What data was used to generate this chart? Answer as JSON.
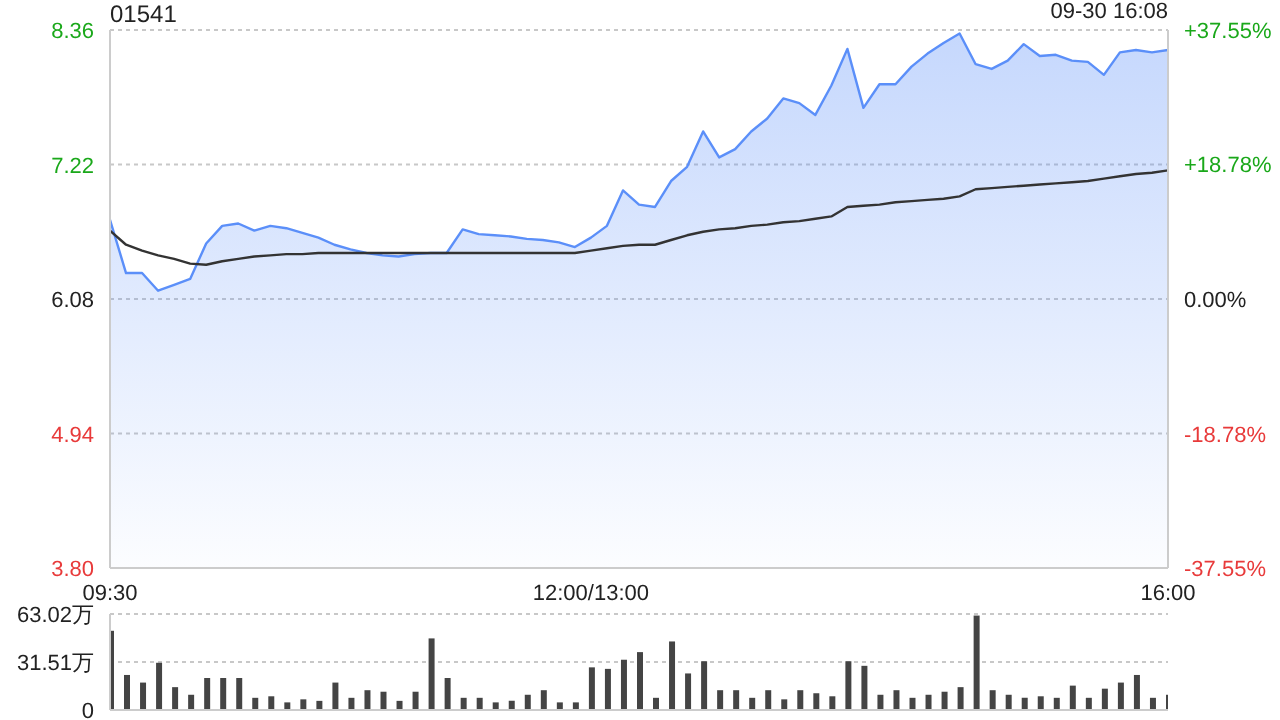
{
  "chart_data": [
    {
      "type": "line",
      "title": "01541",
      "annotations": [
        "09-30 16:08"
      ],
      "categories": [
        "09:30",
        null,
        null,
        null,
        null,
        null,
        null,
        null,
        null,
        null,
        null,
        null,
        null,
        null,
        null,
        null,
        null,
        null,
        null,
        null,
        null,
        null,
        null,
        null,
        null,
        null,
        null,
        null,
        null,
        null,
        "12:00/13:00",
        null,
        null,
        null,
        null,
        null,
        null,
        null,
        null,
        null,
        null,
        null,
        null,
        null,
        null,
        null,
        null,
        null,
        null,
        null,
        null,
        null,
        null,
        null,
        null,
        null,
        null,
        null,
        null,
        null,
        null,
        null,
        null,
        null,
        null,
        null,
        "16:00"
      ],
      "ylim": [
        3.8,
        8.36
      ],
      "yticks": [
        {
          "value": 3.8,
          "label": "3.80"
        },
        4.94,
        6.08,
        7.22,
        8.36
      ],
      "y2lim": [
        -37.55,
        37.55
      ],
      "y2ticks": [
        {
          "value": -37.55,
          "label": "-37.55%"
        },
        {
          "value": -18.78,
          "label": "-18.78%"
        },
        {
          "value": 0,
          "label": "0.00%"
        },
        {
          "value": 18.78,
          "label": "+18.78%"
        },
        {
          "value": 37.55,
          "label": "+37.55%"
        }
      ],
      "grid": "y",
      "legend": false,
      "marker": "none",
      "series": [
        {
          "type": "area",
          "color": "#5b8ff9",
          "values": [
            6.75,
            6.3,
            6.3,
            6.15,
            6.2,
            6.25,
            6.55,
            6.7,
            6.72,
            6.66,
            6.7,
            6.68,
            6.64,
            6.6,
            6.54,
            6.5,
            6.47,
            6.45,
            6.44,
            6.46,
            6.47,
            6.47,
            6.67,
            6.63,
            6.62,
            6.61,
            6.59,
            6.58,
            6.56,
            6.52,
            6.6,
            6.7,
            7.0,
            6.88,
            6.86,
            7.08,
            7.2,
            7.5,
            7.28,
            7.35,
            7.5,
            7.61,
            7.78,
            7.74,
            7.64,
            7.89,
            8.2,
            7.7,
            7.9,
            7.9,
            8.05,
            8.16,
            8.25,
            8.33,
            8.07,
            8.03,
            8.1,
            8.24,
            8.14,
            8.15,
            8.1,
            8.09,
            7.98,
            8.17,
            8.19,
            8.17,
            8.19
          ]
        },
        {
          "type": "line",
          "color": "#333333",
          "values": [
            6.66,
            6.54,
            6.49,
            6.45,
            6.42,
            6.38,
            6.37,
            6.4,
            6.42,
            6.44,
            6.45,
            6.46,
            6.46,
            6.47,
            6.47,
            6.47,
            6.47,
            6.47,
            6.47,
            6.47,
            6.47,
            6.47,
            6.47,
            6.47,
            6.47,
            6.47,
            6.47,
            6.47,
            6.47,
            6.47,
            6.49,
            6.51,
            6.53,
            6.54,
            6.54,
            6.58,
            6.62,
            6.65,
            6.67,
            6.68,
            6.7,
            6.71,
            6.73,
            6.74,
            6.76,
            6.78,
            6.86,
            6.87,
            6.88,
            6.9,
            6.91,
            6.92,
            6.93,
            6.95,
            7.01,
            7.02,
            7.03,
            7.04,
            7.05,
            7.06,
            7.07,
            7.08,
            7.1,
            7.12,
            7.14,
            7.15,
            7.17
          ]
        }
      ]
    },
    {
      "type": "bar",
      "tick_labels": "y",
      "grid": "y",
      "legend": false,
      "color": "#444444",
      "categories": [
        null,
        null,
        null,
        null,
        null,
        null,
        null,
        null,
        null,
        null,
        null,
        null,
        null,
        null,
        null,
        null,
        null,
        null,
        null,
        null,
        null,
        null,
        null,
        null,
        null,
        null,
        null,
        null,
        null,
        null,
        null,
        null,
        null,
        null,
        null,
        null,
        null,
        null,
        null,
        null,
        null,
        null,
        null,
        null,
        null,
        null,
        null,
        null,
        null,
        null,
        null,
        null,
        null,
        null,
        null,
        null,
        null,
        null,
        null,
        null,
        null,
        null,
        null,
        null,
        null,
        null,
        null
      ],
      "ylim": [
        0,
        63.02
      ],
      "yticks": [
        0,
        {
          "value": 31.51,
          "label": "31.51万"
        },
        {
          "value": 63.02,
          "label": "63.02万"
        }
      ],
      "values": [
        52,
        23,
        18,
        31,
        15,
        10,
        21,
        21,
        21,
        8,
        9,
        5,
        7,
        6,
        18,
        8,
        13,
        12,
        6,
        12,
        47,
        21,
        8,
        8,
        5,
        6,
        10,
        13,
        5,
        5,
        28,
        27,
        33,
        38,
        8,
        45,
        24,
        32,
        13,
        13,
        8,
        13,
        7,
        13,
        11,
        9,
        32,
        29,
        10,
        13,
        8,
        10,
        12,
        15,
        62,
        13,
        10,
        8,
        9,
        8,
        16,
        8,
        14,
        18,
        23,
        8,
        10
      ]
    }
  ]
}
